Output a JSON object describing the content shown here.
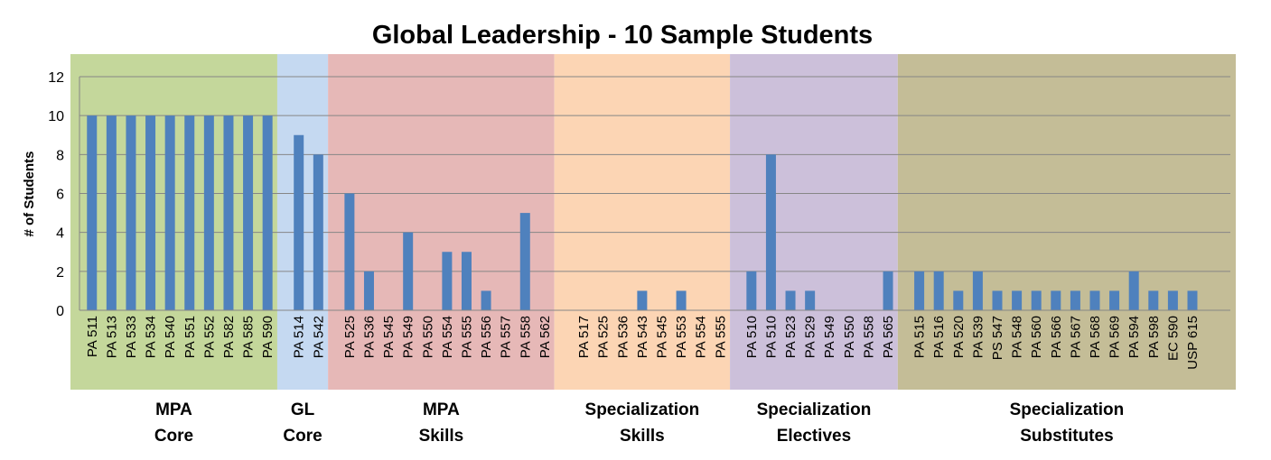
{
  "chart_data": {
    "type": "bar",
    "title": "Global Leadership - 10 Sample Students",
    "ylabel": "# of Students",
    "xlabel": "",
    "ylim": [
      0,
      12
    ],
    "yticks": [
      0,
      2,
      4,
      6,
      8,
      10,
      12
    ],
    "grid": true,
    "legend": "none",
    "bar_color": "#4f81bd",
    "groups": [
      {
        "label_lines": [
          "MPA",
          "Core"
        ],
        "background": "#c4d79b",
        "categories": [
          "PA 511",
          "PA 513",
          "PA 533",
          "PA 534",
          "PA 540",
          "PA 551",
          "PA 552",
          "PA 582",
          "PA 585",
          "PA 590"
        ],
        "values": [
          10,
          10,
          10,
          10,
          10,
          10,
          10,
          10,
          10,
          10
        ]
      },
      {
        "label_lines": [
          "GL",
          "Core"
        ],
        "background": "#c5d9f1",
        "categories": [
          "PA 514",
          "PA 542"
        ],
        "values": [
          9,
          8
        ]
      },
      {
        "label_lines": [
          "MPA",
          "Skills"
        ],
        "background": "#e6b8b7",
        "categories": [
          "PA 525",
          "PA 536",
          "PA 545",
          "PA 549",
          "PA 550",
          "PA 554",
          "PA 555",
          "PA 556",
          "PA 557",
          "PA 558",
          "PA 562"
        ],
        "values": [
          6,
          2,
          0,
          4,
          0,
          3,
          3,
          1,
          0,
          5,
          0
        ]
      },
      {
        "label_lines": [
          "Specialization",
          "Skills"
        ],
        "background": "#fcd5b4",
        "categories": [
          "PA 517",
          "PA 525",
          "PA 536",
          "PA 543",
          "PA 545",
          "PA 553",
          "PA 554",
          "PA 555"
        ],
        "values": [
          0,
          0,
          0,
          1,
          0,
          1,
          0,
          0
        ]
      },
      {
        "label_lines": [
          "Specialization",
          "Electives"
        ],
        "background": "#ccc0da",
        "categories": [
          "PA 510",
          "PA 510",
          "PA 523",
          "PA 529",
          "PA 549",
          "PA 550",
          "PA 558",
          "PA 565"
        ],
        "values": [
          2,
          8,
          1,
          1,
          0,
          0,
          0,
          2
        ]
      },
      {
        "label_lines": [
          "Specialization",
          "Substitutes"
        ],
        "background": "#c4bd97",
        "categories": [
          "PA 515",
          "PA 516",
          "PA 520",
          "PA 539",
          "PS 547",
          "PA 548",
          "PA 560",
          "PA 566",
          "PA 567",
          "PA 568",
          "PA 569",
          "PA 594",
          "PA 598",
          "EC 590",
          "USP 615"
        ],
        "values": [
          2,
          2,
          1,
          2,
          1,
          1,
          1,
          1,
          1,
          1,
          1,
          2,
          1,
          1,
          1
        ]
      }
    ]
  }
}
